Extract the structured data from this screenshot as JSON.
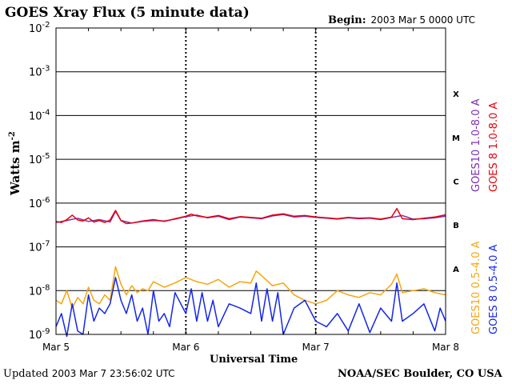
{
  "header": {
    "title": "GOES Xray Flux (5 minute data)",
    "begin_label": "Begin:",
    "begin_value": "2003 Mar 5 0000 UTC"
  },
  "footer": {
    "updated_label": "Updated",
    "updated_value": "2003 Mar  7 23:56:02 UTC",
    "credit": "NOAA/SEC Boulder, CO USA"
  },
  "chart_data": {
    "type": "line",
    "title": "GOES Xray Flux (5 minute data)",
    "xlabel": "Universal Time",
    "ylabel": "Watts m",
    "ylabel_superscript": "-2",
    "y_scale": "log",
    "ylim": [
      1e-09,
      0.01
    ],
    "xlim": [
      "2003-03-05 00:00",
      "2003-03-08 00:00"
    ],
    "x_ticks": [
      "Mar 5",
      "Mar 6",
      "Mar 7",
      "Mar 8"
    ],
    "y_tick_labels": [
      {
        "base": "10",
        "exp": "-2"
      },
      {
        "base": "10",
        "exp": "-3"
      },
      {
        "base": "10",
        "exp": "-4"
      },
      {
        "base": "10",
        "exp": "-5"
      },
      {
        "base": "10",
        "exp": "-6"
      },
      {
        "base": "10",
        "exp": "-7"
      },
      {
        "base": "10",
        "exp": "-8"
      },
      {
        "base": "10",
        "exp": "-9"
      }
    ],
    "flare_classes": [
      "X",
      "M",
      "C",
      "B",
      "A"
    ],
    "grid": "horizontal at each decade; dotted vertical at day boundaries",
    "series": [
      {
        "name": "GOES10 1.0-8.0 A",
        "color": "#7b2fb0",
        "x_hours": [
          0,
          2,
          4,
          6,
          8,
          10,
          11,
          12,
          14,
          16,
          18,
          20,
          22,
          24,
          26,
          28,
          30,
          32,
          34,
          36,
          38,
          40,
          42,
          44,
          46,
          48,
          50,
          52,
          54,
          56,
          58,
          60,
          62,
          64,
          66,
          68,
          70,
          72
        ],
        "values": [
          3.6e-07,
          4e-07,
          4.5e-07,
          3.8e-07,
          4.2e-07,
          3.7e-07,
          6.5e-07,
          4e-07,
          3.5e-07,
          3.8e-07,
          4e-07,
          3.9e-07,
          4.3e-07,
          4.9e-07,
          5.3e-07,
          4.6e-07,
          5e-07,
          4.2e-07,
          4.8e-07,
          4.6e-07,
          4.4e-07,
          5.1e-07,
          5.5e-07,
          4.8e-07,
          5e-07,
          4.7e-07,
          4.5e-07,
          4.3e-07,
          4.6e-07,
          4.4e-07,
          4.5e-07,
          4.2e-07,
          4.7e-07,
          5.2e-07,
          4.3e-07,
          4.4e-07,
          4.6e-07,
          5e-07
        ]
      },
      {
        "name": "GOES 8 1.0-8.0 A",
        "color": "#e8000b",
        "x_hours": [
          0,
          1,
          2,
          3,
          4,
          5,
          6,
          7,
          8,
          9,
          10,
          11,
          12,
          13,
          14,
          16,
          18,
          20,
          22,
          24,
          25,
          26,
          28,
          30,
          32,
          34,
          36,
          38,
          40,
          42,
          44,
          46,
          48,
          50,
          52,
          54,
          56,
          58,
          60,
          62,
          63,
          64,
          66,
          68,
          70,
          72
        ],
        "values": [
          3.8e-07,
          3.6e-07,
          4.2e-07,
          5.3e-07,
          4.1e-07,
          3.9e-07,
          4.6e-07,
          3.7e-07,
          4e-07,
          3.6e-07,
          4.1e-07,
          6.8e-07,
          4e-07,
          3.4e-07,
          3.5e-07,
          3.9e-07,
          4.2e-07,
          3.8e-07,
          4.4e-07,
          5e-07,
          5.6e-07,
          5.1e-07,
          4.7e-07,
          5.2e-07,
          4.4e-07,
          4.9e-07,
          4.7e-07,
          4.5e-07,
          5.3e-07,
          5.7e-07,
          5e-07,
          5.2e-07,
          4.8e-07,
          4.6e-07,
          4.4e-07,
          4.7e-07,
          4.5e-07,
          4.6e-07,
          4.3e-07,
          4.8e-07,
          7.5e-07,
          4.4e-07,
          4.2e-07,
          4.5e-07,
          4.8e-07,
          5.4e-07
        ]
      },
      {
        "name": "GOES10 0.5-4.0 A",
        "color": "#f5a50d",
        "x_hours": [
          0,
          1,
          2,
          3,
          4,
          5,
          6,
          7,
          8,
          9,
          10,
          11,
          12,
          13,
          14,
          15,
          16,
          17,
          18,
          20,
          22,
          24,
          26,
          28,
          30,
          32,
          34,
          36,
          37,
          38,
          40,
          42,
          44,
          46,
          48,
          50,
          52,
          54,
          56,
          58,
          60,
          62,
          63,
          64,
          66,
          68,
          70,
          72
        ],
        "values": [
          6e-09,
          5e-09,
          1e-08,
          4e-09,
          7e-09,
          5e-09,
          1.2e-08,
          6e-09,
          5e-09,
          8e-09,
          6e-09,
          3.5e-08,
          1.4e-08,
          8e-09,
          1.3e-08,
          9e-09,
          1.1e-08,
          1e-08,
          1.6e-08,
          1.2e-08,
          1.5e-08,
          2e-08,
          1.6e-08,
          1.4e-08,
          1.8e-08,
          1.2e-08,
          1.6e-08,
          1.5e-08,
          2.8e-08,
          2.2e-08,
          1.3e-08,
          1.5e-08,
          8e-09,
          6e-09,
          5e-09,
          6e-09,
          1e-08,
          8e-09,
          7e-09,
          9e-09,
          8e-09,
          1.4e-08,
          2.4e-08,
          9e-09,
          1e-08,
          1.1e-08,
          9e-09,
          8e-09
        ]
      },
      {
        "name": "GOES 8 0.5-4.0 A",
        "color": "#1427e8",
        "x_hours": [
          0,
          1,
          2,
          3,
          4,
          5,
          6,
          7,
          8,
          9,
          10,
          11,
          12,
          13,
          14,
          15,
          16,
          17,
          18,
          19,
          20,
          21,
          22,
          24,
          25,
          26,
          27,
          28,
          29,
          30,
          32,
          34,
          36,
          37,
          38,
          39,
          40,
          41,
          42,
          44,
          46,
          48,
          50,
          52,
          54,
          56,
          58,
          60,
          62,
          63,
          64,
          66,
          68,
          70,
          71,
          72
        ],
        "values": [
          1.5e-09,
          3e-09,
          9e-10,
          5e-09,
          1.2e-09,
          1e-09,
          8e-09,
          2e-09,
          4e-09,
          3e-09,
          5e-09,
          2e-08,
          6e-09,
          3e-09,
          8e-09,
          2e-09,
          4e-09,
          1e-09,
          1e-08,
          2e-09,
          3e-09,
          1.5e-09,
          9e-09,
          3e-09,
          1.1e-08,
          2e-09,
          9e-09,
          2e-09,
          6e-09,
          1.5e-09,
          5e-09,
          4e-09,
          3e-09,
          1.5e-08,
          2e-09,
          1.1e-08,
          2e-09,
          9e-09,
          1e-09,
          4e-09,
          6e-09,
          2e-09,
          1.5e-09,
          3e-09,
          1.2e-09,
          5e-09,
          1.1e-09,
          4e-09,
          2e-09,
          1.5e-08,
          2e-09,
          3e-09,
          5e-09,
          1.2e-09,
          4e-09,
          2e-09
        ]
      }
    ]
  }
}
